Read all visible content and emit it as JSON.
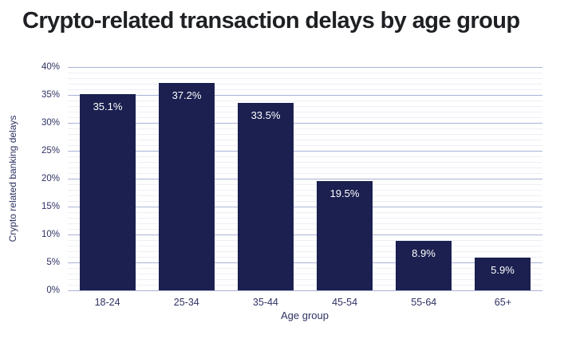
{
  "chart_data": {
    "type": "bar",
    "title": "Crypto-related transaction delays by age group",
    "categories": [
      "18-24",
      "25-34",
      "35-44",
      "45-54",
      "55-64",
      "65+"
    ],
    "values": [
      35.1,
      37.2,
      33.5,
      19.5,
      8.9,
      5.9
    ],
    "value_labels": [
      "35.1%",
      "37.2%",
      "33.5%",
      "19.5%",
      "8.9%",
      "5.9%"
    ],
    "xlabel": "Age group",
    "ylabel": "Crypto related banking delays",
    "ylim": [
      0,
      40
    ],
    "y_major_step": 5,
    "y_minor_step": 1,
    "y_tick_labels": [
      "0%",
      "5%",
      "10%",
      "15%",
      "20%",
      "25%",
      "30%",
      "35%",
      "40%"
    ],
    "grid": "horizontal",
    "legend": "none",
    "colors": {
      "bar": "#1b2050",
      "bar_label": "#ffffff",
      "major_grid": "#a9b2d6",
      "minor_grid": "#edeff6",
      "axis_text": "#2e3263",
      "title_text": "#1e2023",
      "background": "#ffffff"
    }
  }
}
